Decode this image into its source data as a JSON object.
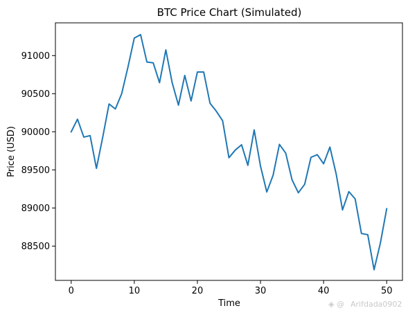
{
  "chart_data": {
    "type": "line",
    "title": "BTC Price Chart (Simulated)",
    "xlabel": "Time",
    "ylabel": "Price (USD)",
    "xlim": [
      -2.5,
      52.5
    ],
    "ylim": [
      88050,
      91430
    ],
    "xticks": [
      0,
      10,
      20,
      30,
      40,
      50
    ],
    "yticks": [
      88500,
      89000,
      89500,
      90000,
      90500,
      91000
    ],
    "grid": false,
    "legend": "none",
    "series": [
      {
        "color": "#1f77b4",
        "x": [
          0,
          1,
          2,
          3,
          4,
          5,
          6,
          7,
          8,
          9,
          10,
          11,
          12,
          13,
          14,
          15,
          16,
          17,
          18,
          19,
          20,
          21,
          22,
          23,
          24,
          25,
          26,
          27,
          28,
          29,
          30,
          31,
          32,
          33,
          34,
          35,
          36,
          37,
          38,
          39,
          40,
          41,
          42,
          43,
          44,
          45,
          46,
          47,
          48,
          49,
          50
        ],
        "values": [
          90000,
          90165,
          89930,
          89950,
          89520,
          89930,
          90365,
          90300,
          90500,
          90850,
          91230,
          91275,
          90915,
          90905,
          90645,
          91075,
          90645,
          90350,
          90740,
          90405,
          90785,
          90785,
          90375,
          90270,
          90145,
          89660,
          89760,
          89830,
          89560,
          90025,
          89550,
          89210,
          89430,
          89835,
          89720,
          89370,
          89200,
          89310,
          89665,
          89700,
          89580,
          89800,
          89445,
          88975,
          89215,
          89120,
          88665,
          88650,
          88190,
          88540,
          88990
        ]
      }
    ]
  },
  "watermark": "Arifdada0902"
}
